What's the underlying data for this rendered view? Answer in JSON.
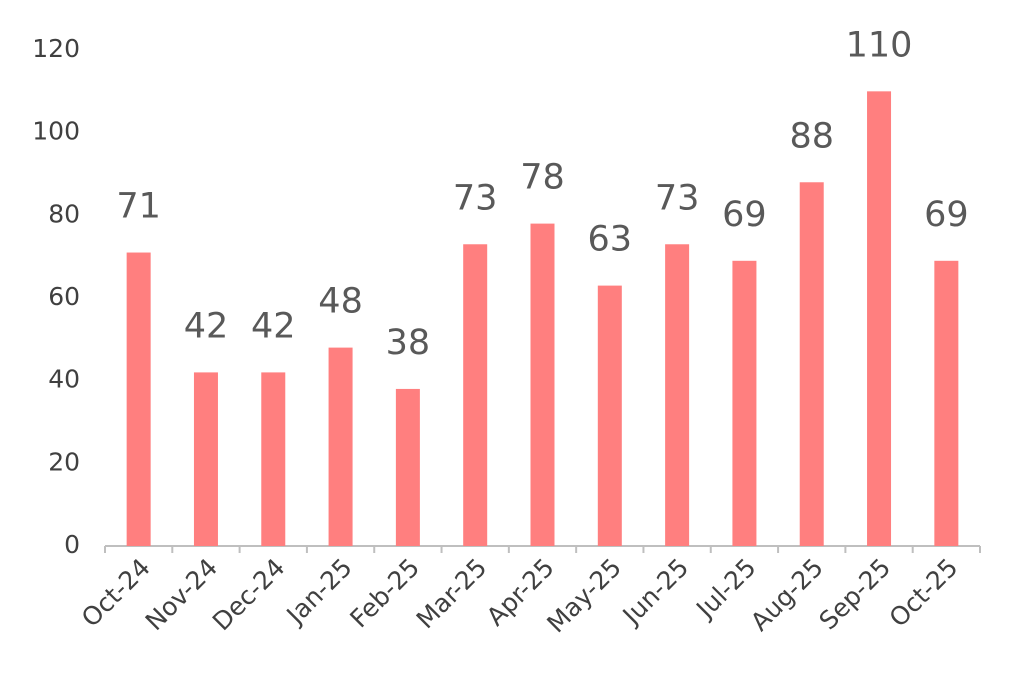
{
  "chart_data": {
    "type": "bar",
    "categories": [
      "Oct-24",
      "Nov-24",
      "Dec-24",
      "Jan-25",
      "Feb-25",
      "Mar-25",
      "Apr-25",
      "May-25",
      "Jun-25",
      "Jul-25",
      "Aug-25",
      "Sep-25",
      "Oct-25"
    ],
    "values": [
      71,
      42,
      42,
      48,
      38,
      73,
      78,
      63,
      73,
      69,
      88,
      110,
      69
    ],
    "color": "#ff7f7f",
    "ylim": [
      0,
      120
    ],
    "yticks": [
      0,
      20,
      40,
      60,
      80,
      100,
      120
    ],
    "grid": false
  }
}
